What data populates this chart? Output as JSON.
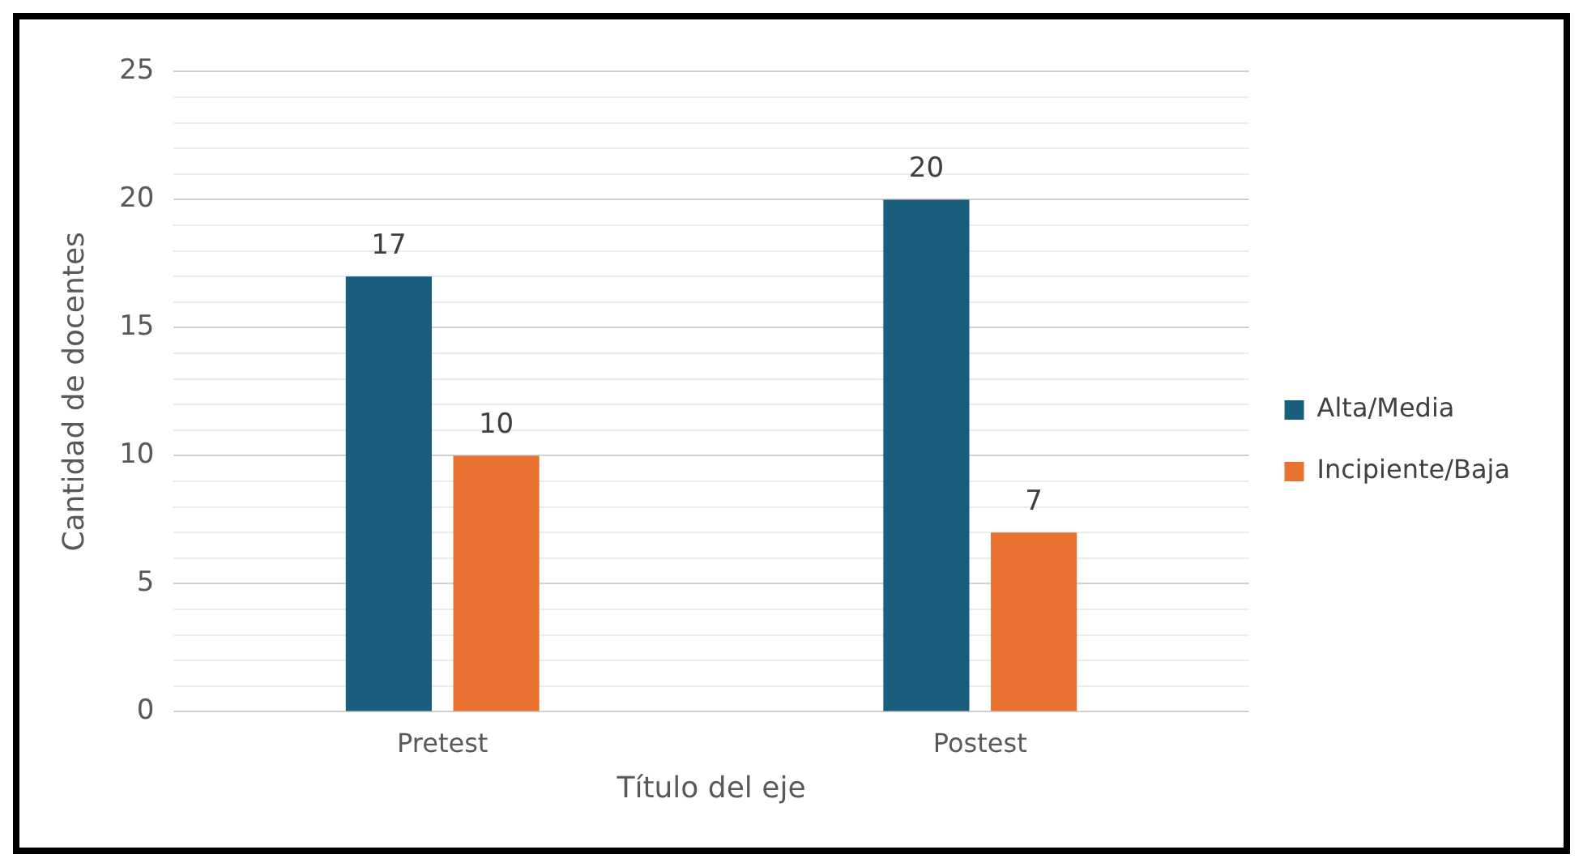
{
  "chart_data": {
    "type": "bar",
    "xlabel": "Título del eje",
    "ylabel": "Cantidad de docentes",
    "categories": [
      "Pretest",
      "Postest"
    ],
    "series": [
      {
        "name": "Alta/Media",
        "color": "#1a5e7d",
        "values": [
          17,
          20
        ]
      },
      {
        "name": "Incipiente/Baja",
        "color": "#e97132",
        "values": [
          10,
          7
        ]
      }
    ],
    "ylim": [
      0,
      25
    ],
    "yticks": [
      0,
      {
        "value": 1,
        "label": null
      },
      {
        "value": 2,
        "label": null
      },
      {
        "value": 3,
        "label": null
      },
      {
        "value": 4,
        "label": null
      },
      5,
      {
        "value": 6,
        "label": null
      },
      {
        "value": 7,
        "label": null
      },
      {
        "value": 8,
        "label": null
      },
      {
        "value": 9,
        "label": null
      },
      10,
      {
        "value": 11,
        "label": null
      },
      {
        "value": 12,
        "label": null
      },
      {
        "value": 13,
        "label": null
      },
      {
        "value": 14,
        "label": null
      },
      15,
      {
        "value": 16,
        "label": null
      },
      {
        "value": 17,
        "label": null
      },
      {
        "value": 18,
        "label": null
      },
      {
        "value": 19,
        "label": null
      },
      20,
      {
        "value": 21,
        "label": null
      },
      {
        "value": 22,
        "label": null
      },
      {
        "value": 23,
        "label": null
      },
      {
        "value": 24,
        "label": null
      },
      25
    ],
    "grid": "y",
    "legend": "right",
    "data_labels": true
  }
}
